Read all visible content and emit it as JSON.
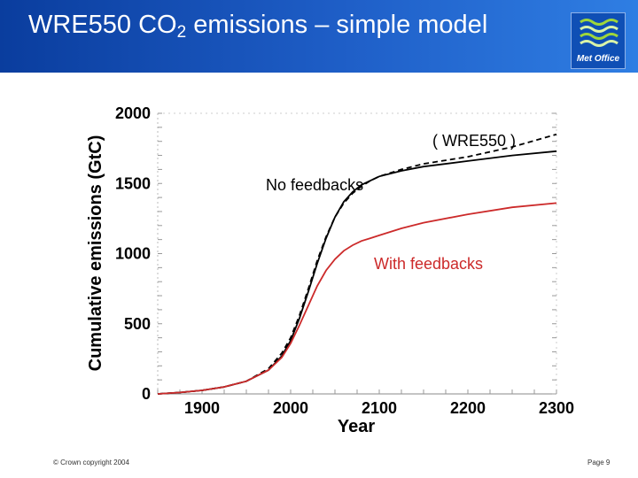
{
  "header": {
    "title_main": "WRE550 CO",
    "title_sub": "2",
    "title_rest": " emissions – simple model"
  },
  "logo": {
    "label": "Met Office",
    "icon": "met-office-wave-logo"
  },
  "footer": {
    "copyright": "© Crown copyright 2004",
    "page": "Page 9"
  },
  "colors": {
    "header_start": "#0a3d9e",
    "header_end": "#2f7ee3",
    "no_feedbacks": "#000000",
    "with_feedbacks": "#cc2a2a"
  },
  "chart_data": {
    "type": "line",
    "xlabel": "Year",
    "ylabel": "Cumulative emissions (GtC)",
    "xlim": [
      1850,
      2300
    ],
    "ylim": [
      0,
      2000
    ],
    "x_ticks": [
      "1900",
      "2000",
      "2100",
      "2200",
      "2300"
    ],
    "y_ticks": [
      "0",
      "500",
      "1000",
      "1500",
      "2000"
    ],
    "annotations": [
      "( WRE550 )",
      "No feedbacks",
      "With feedbacks"
    ],
    "series": [
      {
        "name": "( WRE550 )",
        "style": "dashed",
        "color": "#000000",
        "x": [
          1850,
          1875,
          1900,
          1925,
          1950,
          1975,
          1990,
          2000,
          2010,
          2020,
          2030,
          2040,
          2050,
          2060,
          2070,
          2080,
          2090,
          2100,
          2125,
          2150,
          2200,
          2250,
          2300
        ],
        "y": [
          0,
          10,
          25,
          50,
          90,
          180,
          290,
          400,
          560,
          750,
          950,
          1120,
          1260,
          1360,
          1430,
          1480,
          1520,
          1550,
          1600,
          1640,
          1690,
          1760,
          1850
        ]
      },
      {
        "name": "No feedbacks",
        "style": "solid",
        "color": "#000000",
        "x": [
          1850,
          1875,
          1900,
          1925,
          1950,
          1975,
          1990,
          2000,
          2010,
          2020,
          2030,
          2040,
          2050,
          2060,
          2070,
          2080,
          2090,
          2100,
          2125,
          2150,
          2200,
          2250,
          2300
        ],
        "y": [
          0,
          10,
          25,
          50,
          90,
          170,
          270,
          380,
          540,
          730,
          930,
          1110,
          1260,
          1370,
          1440,
          1490,
          1520,
          1550,
          1590,
          1620,
          1660,
          1700,
          1730
        ]
      },
      {
        "name": "With feedbacks",
        "style": "solid",
        "color": "#cc2a2a",
        "x": [
          1850,
          1875,
          1900,
          1925,
          1950,
          1975,
          1990,
          2000,
          2010,
          2020,
          2030,
          2040,
          2050,
          2060,
          2070,
          2080,
          2090,
          2100,
          2125,
          2150,
          2200,
          2250,
          2300
        ],
        "y": [
          0,
          10,
          25,
          50,
          90,
          170,
          260,
          360,
          490,
          630,
          770,
          880,
          960,
          1020,
          1060,
          1090,
          1110,
          1130,
          1180,
          1220,
          1280,
          1330,
          1360
        ]
      }
    ]
  }
}
